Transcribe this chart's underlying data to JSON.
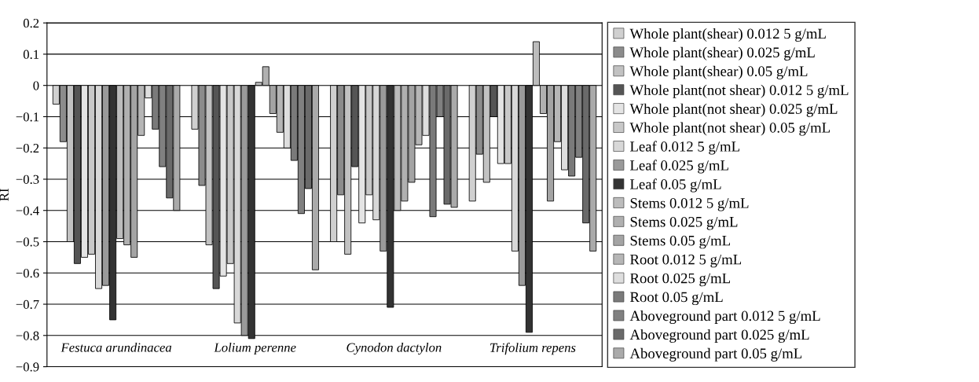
{
  "chart_data": {
    "type": "bar",
    "ylabel": "RI",
    "categories": [
      "Festuca arundinacea",
      "Lolium perenne",
      "Cynodon dactylon",
      "Trifolium repens"
    ],
    "ylim": [
      -0.9,
      0.2
    ],
    "yticks": [
      0.2,
      0.1,
      0,
      {
        "value": -0.1,
        "label": "−0.1"
      },
      {
        "value": -0.2,
        "label": "−0.2"
      },
      {
        "value": -0.3,
        "label": "−0.3"
      },
      {
        "value": -0.4,
        "label": "−0.4"
      },
      {
        "value": -0.5,
        "label": "−0.5"
      },
      {
        "value": -0.6,
        "label": "−0.6"
      },
      {
        "value": -0.7,
        "label": "−0.7"
      },
      {
        "value": -0.8,
        "label": "−0.8"
      },
      {
        "value": -0.9,
        "label": "−0.9"
      }
    ],
    "grid": "y",
    "legend": "right",
    "series": [
      {
        "name": "Whole plant(shear) 0.012 5 g/mL",
        "color": "#d0d0d0",
        "values": [
          -0.06,
          -0.14,
          -0.5,
          -0.37
        ]
      },
      {
        "name": "Whole plant(shear) 0.025 g/mL",
        "color": "#8c8c8c",
        "values": [
          -0.18,
          -0.32,
          -0.35,
          -0.22
        ]
      },
      {
        "name": "Whole plant(shear) 0.05 g/mL",
        "color": "#c2c2c2",
        "values": [
          -0.5,
          -0.51,
          -0.54,
          -0.31
        ]
      },
      {
        "name": "Whole plant(not shear) 0.012 5 g/mL",
        "color": "#555555",
        "values": [
          -0.57,
          -0.65,
          -0.26,
          -0.1
        ]
      },
      {
        "name": "Whole plant(not shear) 0.025 g/mL",
        "color": "#e4e4e4",
        "values": [
          -0.55,
          -0.61,
          -0.44,
          -0.25
        ]
      },
      {
        "name": "Whole plant(not shear) 0.05 g/mL",
        "color": "#c8c8c8",
        "values": [
          -0.54,
          -0.57,
          -0.35,
          -0.25
        ]
      },
      {
        "name": "Leaf 0.012 5 g/mL",
        "color": "#d8d8d8",
        "values": [
          -0.65,
          -0.76,
          -0.43,
          -0.53
        ]
      },
      {
        "name": "Leaf 0.025 g/mL",
        "color": "#9a9a9a",
        "values": [
          -0.64,
          -0.8,
          -0.53,
          -0.64
        ]
      },
      {
        "name": "Leaf 0.05 g/mL",
        "color": "#333333",
        "values": [
          -0.75,
          -0.81,
          -0.71,
          -0.79
        ]
      },
      {
        "name": "Stems 0.012 5 g/mL",
        "color": "#bcbcbc",
        "values": [
          -0.49,
          0.01,
          -0.4,
          0.14
        ]
      },
      {
        "name": "Stems 0.025 g/mL",
        "color": "#b0b0b0",
        "values": [
          -0.51,
          0.06,
          -0.37,
          -0.09
        ]
      },
      {
        "name": "Stems 0.05 g/mL",
        "color": "#a4a4a4",
        "values": [
          -0.55,
          -0.09,
          -0.31,
          -0.37
        ]
      },
      {
        "name": "Root 0.012 5 g/mL",
        "color": "#b6b6b6",
        "values": [
          -0.16,
          -0.15,
          -0.19,
          -0.18
        ]
      },
      {
        "name": "Root 0.025 g/mL",
        "color": "#dedede",
        "values": [
          -0.04,
          -0.2,
          -0.16,
          -0.27
        ]
      },
      {
        "name": "Root 0.05 g/mL",
        "color": "#7a7a7a",
        "values": [
          -0.14,
          -0.24,
          -0.42,
          -0.29
        ]
      },
      {
        "name": "Aboveground part 0.012 5 g/mL",
        "color": "#808080",
        "values": [
          -0.26,
          -0.41,
          -0.1,
          -0.23
        ]
      },
      {
        "name": "Aboveground part 0.025 g/mL",
        "color": "#6a6a6a",
        "values": [
          -0.36,
          -0.33,
          -0.38,
          -0.44
        ]
      },
      {
        "name": "Aboveground part 0.05 g/mL",
        "color": "#aaaaaa",
        "values": [
          -0.4,
          -0.59,
          -0.39,
          -0.53
        ]
      }
    ]
  }
}
